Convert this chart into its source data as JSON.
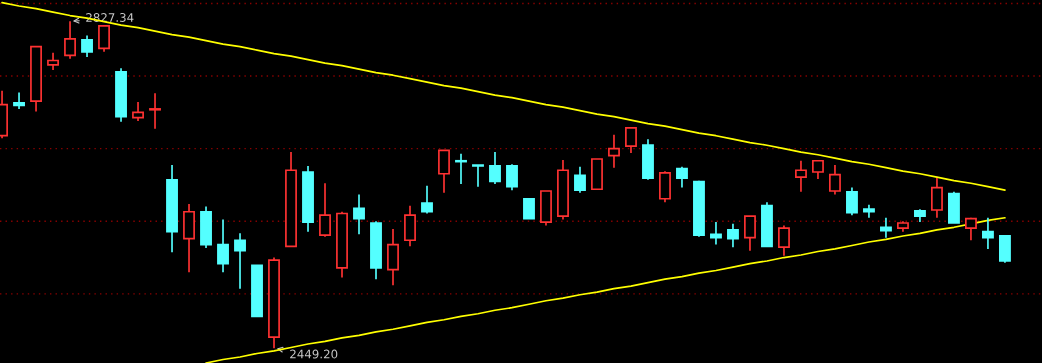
{
  "chart_data": {
    "type": "candlestick",
    "categories": [
      null,
      null,
      null,
      null,
      null,
      null,
      null,
      null,
      null,
      null,
      null,
      null,
      null,
      null,
      null,
      null,
      null,
      null,
      null,
      null,
      null,
      null,
      null,
      null,
      null,
      null,
      null,
      null,
      null,
      null,
      null,
      null,
      null,
      null,
      null,
      null,
      null,
      null,
      null,
      null,
      null,
      null,
      null,
      null,
      null,
      null,
      null,
      null,
      null,
      null,
      null,
      null,
      null,
      null,
      null,
      null,
      null,
      null,
      null,
      null
    ],
    "ohlc": [
      [
        2695,
        2747,
        2692,
        2731
      ],
      [
        2733,
        2745,
        2726,
        2730
      ],
      [
        2735,
        2798,
        2723,
        2798
      ],
      [
        2777,
        2791,
        2771,
        2782
      ],
      [
        2788,
        2827.34,
        2784,
        2807
      ],
      [
        2806,
        2811,
        2786,
        2792
      ],
      [
        2796,
        2822,
        2792,
        2822
      ],
      [
        2769,
        2773,
        2711,
        2717
      ],
      [
        2716,
        2734,
        2712,
        2722
      ],
      [
        2725,
        2744,
        2703,
        2726
      ],
      [
        2644,
        2661,
        2560,
        2584
      ],
      [
        2576,
        2616,
        2537,
        2607
      ],
      [
        2607,
        2613,
        2565,
        2569
      ],
      [
        2569,
        2598,
        2537,
        2547
      ],
      [
        2574,
        2582,
        2518,
        2562
      ],
      [
        2545,
        2545,
        2486,
        2486
      ],
      [
        2462,
        2554,
        2449.2,
        2551
      ],
      [
        2567,
        2676,
        2567,
        2655
      ],
      [
        2653,
        2660,
        2584,
        2595
      ],
      [
        2580,
        2640,
        2578,
        2603
      ],
      [
        2542,
        2607,
        2531,
        2605
      ],
      [
        2611,
        2627,
        2581,
        2599
      ],
      [
        2594,
        2596,
        2529,
        2542
      ],
      [
        2540,
        2587,
        2522,
        2569
      ],
      [
        2574,
        2614,
        2567,
        2603
      ],
      [
        2617,
        2637,
        2605,
        2607
      ],
      [
        2651,
        2678,
        2629,
        2678
      ],
      [
        2666,
        2674,
        2639,
        2665
      ],
      [
        2661,
        2661,
        2636,
        2660
      ],
      [
        2660,
        2676,
        2639,
        2642
      ],
      [
        2660,
        2662,
        2632,
        2636
      ],
      [
        2622,
        2622,
        2599,
        2599
      ],
      [
        2595,
        2631,
        2591,
        2631
      ],
      [
        2602,
        2667,
        2598,
        2655
      ],
      [
        2649,
        2659,
        2629,
        2632
      ],
      [
        2633,
        2668,
        2633,
        2668
      ],
      [
        2672,
        2696,
        2658,
        2680
      ],
      [
        2683,
        2704,
        2675,
        2704
      ],
      [
        2684,
        2691,
        2644,
        2646
      ],
      [
        2622,
        2654,
        2618,
        2652
      ],
      [
        2657,
        2659,
        2635,
        2646
      ],
      [
        2642,
        2643,
        2578,
        2580
      ],
      [
        2581,
        2595,
        2569,
        2577
      ],
      [
        2586,
        2593,
        2566,
        2576
      ],
      [
        2577,
        2602,
        2562,
        2602
      ],
      [
        2614,
        2618,
        2567,
        2567
      ],
      [
        2566,
        2591,
        2556,
        2588
      ],
      [
        2647,
        2666,
        2630,
        2655
      ],
      [
        2653,
        2667,
        2645,
        2666
      ],
      [
        2631,
        2661,
        2627,
        2650
      ],
      [
        2630,
        2635,
        2603,
        2606
      ],
      [
        2610,
        2615,
        2600,
        2607
      ],
      [
        2589,
        2600,
        2577,
        2585
      ],
      [
        2588,
        2596,
        2584,
        2594
      ],
      [
        2608,
        2610,
        2595,
        2602
      ],
      [
        2609,
        2646,
        2600,
        2635
      ],
      [
        2628,
        2630,
        2594,
        2594
      ],
      [
        2588,
        2600,
        2574,
        2599
      ],
      [
        2584,
        2600,
        2564,
        2577
      ],
      [
        2579,
        2580,
        2548,
        2550
      ]
    ],
    "colors": [
      "#ff3232",
      "#54ffff",
      "#ff3232",
      "#ff3232",
      "#ff3232",
      "#54ffff",
      "#ff3232",
      "#54ffff",
      "#ff3232",
      "#ff3232",
      "#54ffff",
      "#ff3232",
      "#54ffff",
      "#54ffff",
      "#54ffff",
      "#54ffff",
      "#ff3232",
      "#ff3232",
      "#54ffff",
      "#ff3232",
      "#ff3232",
      "#54ffff",
      "#54ffff",
      "#ff3232",
      "#ff3232",
      "#54ffff",
      "#ff3232",
      "#54ffff",
      "#54ffff",
      "#54ffff",
      "#54ffff",
      "#54ffff",
      "#ff3232",
      "#ff3232",
      "#54ffff",
      "#ff3232",
      "#ff3232",
      "#ff3232",
      "#54ffff",
      "#ff3232",
      "#54ffff",
      "#54ffff",
      "#54ffff",
      "#54ffff",
      "#ff3232",
      "#54ffff",
      "#ff3232",
      "#ff3232",
      "#ff3232",
      "#ff3232",
      "#54ffff",
      "#54ffff",
      "#54ffff",
      "#ff3232",
      "#54ffff",
      "#ff3232",
      "#54ffff",
      "#ff3232",
      "#54ffff",
      "#54ffff"
    ],
    "series": [
      {
        "type": "line",
        "color": "#ffff00",
        "values": [
          2849,
          2845,
          2842,
          2838,
          2834,
          2831,
          2827,
          2823,
          2820,
          2816,
          2812,
          2809,
          2805,
          2801,
          2798,
          2794,
          2790,
          2787,
          2783,
          2779,
          2776,
          2772,
          2768,
          2765,
          2761,
          2757,
          2753,
          2750,
          2746,
          2742,
          2739,
          2735,
          2731,
          2728,
          2724,
          2720,
          2717,
          2713,
          2709,
          2706,
          2702,
          2698,
          2695,
          2691,
          2687,
          2684,
          2680,
          2676,
          2673,
          2669,
          2665,
          2662,
          2658,
          2654,
          2651,
          2647,
          2643,
          2640,
          2636,
          2632
        ]
      },
      {
        "type": "line",
        "color": "#ffff00",
        "values": [
          null,
          null,
          null,
          null,
          null,
          null,
          null,
          null,
          null,
          null,
          null,
          null,
          2432,
          2436,
          2439,
          2443,
          2446,
          2450,
          2454,
          2457,
          2461,
          2464,
          2468,
          2471,
          2475,
          2479,
          2482,
          2486,
          2489,
          2493,
          2496,
          2500,
          2504,
          2507,
          2511,
          2514,
          2518,
          2521,
          2525,
          2529,
          2532,
          2536,
          2539,
          2543,
          2547,
          2550,
          2554,
          2557,
          2561,
          2564,
          2568,
          2572,
          2575,
          2579,
          2582,
          2586,
          2589,
          2593,
          2597,
          2600
        ]
      }
    ],
    "annotations": [
      {
        "text": "2827.34",
        "y": 2827.34
      },
      {
        "text": "2449.20",
        "y": 2449.2
      }
    ],
    "ylim": [
      2432,
      2852
    ],
    "yticks": [
      {
        "value": 2848,
        "label": null
      },
      {
        "value": 2764,
        "label": null
      },
      {
        "value": 2680,
        "label": null
      },
      {
        "value": 2596,
        "label": null
      },
      {
        "value": 2512,
        "label": null
      }
    ],
    "grid": "y",
    "legend": false
  }
}
